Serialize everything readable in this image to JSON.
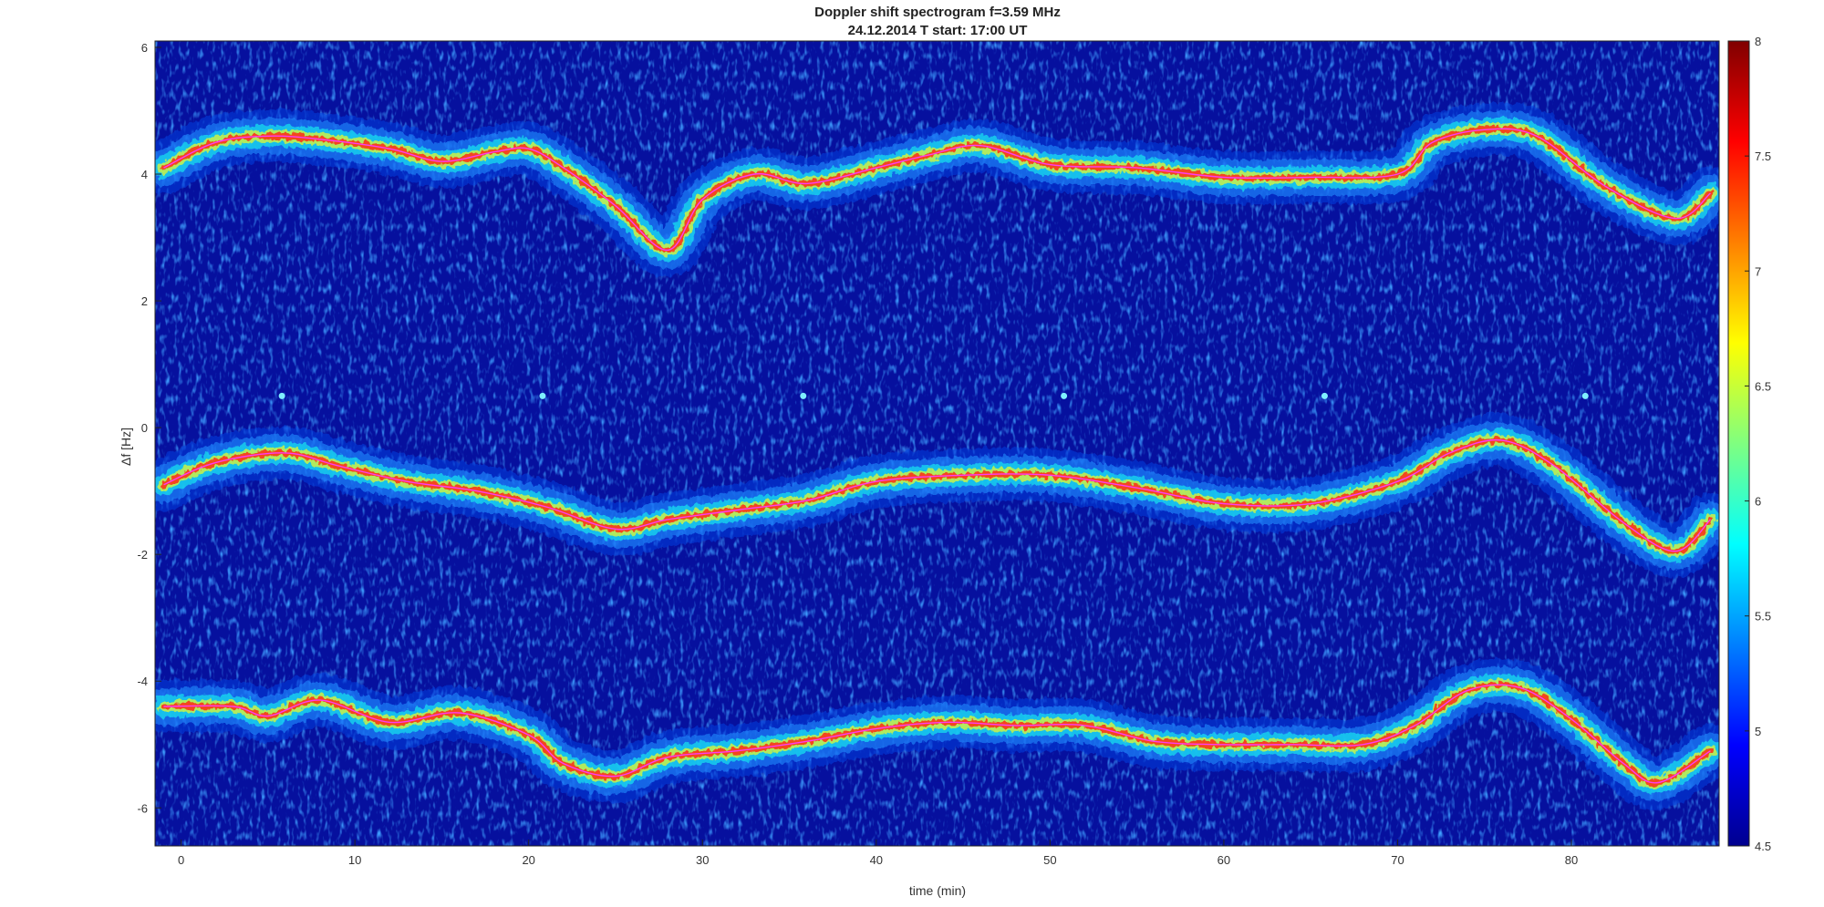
{
  "chart_data": {
    "type": "heatmap",
    "title": "Doppler shift spectrogram f=3.59 MHz",
    "subtitle": "24.12.2014   T start: 17:00 UT",
    "xlabel": "time (min)",
    "ylabel": "Δf [Hz]",
    "xlim": [
      -1.5,
      88.5
    ],
    "ylim": [
      -6.6,
      6.1
    ],
    "x_ticks": [
      0,
      10,
      20,
      30,
      40,
      50,
      60,
      70,
      80
    ],
    "y_ticks": [
      -6,
      -4,
      -2,
      0,
      2,
      4,
      6
    ],
    "colorbar": {
      "colormap": "jet",
      "range": [
        4.5,
        8
      ],
      "ticks": [
        4.5,
        5,
        5.5,
        6,
        6.5,
        7,
        7.5,
        8
      ]
    },
    "grid": false,
    "series": [
      {
        "x": [
          -1,
          2,
          5,
          8,
          12,
          15,
          18,
          20,
          22,
          25,
          28,
          30,
          33,
          36,
          40,
          43,
          46,
          50,
          55,
          60,
          65,
          70,
          72,
          75,
          78,
          82,
          86,
          88
        ],
        "y": [
          4.1,
          4.5,
          4.6,
          4.55,
          4.4,
          4.2,
          4.35,
          4.4,
          4.1,
          3.5,
          2.8,
          3.6,
          4.0,
          3.85,
          4.1,
          4.3,
          4.45,
          4.15,
          4.1,
          3.95,
          3.95,
          4.0,
          4.5,
          4.7,
          4.6,
          3.8,
          3.3,
          3.7
        ]
      },
      {
        "x": [
          -1,
          2,
          6,
          9,
          13,
          17,
          21,
          25,
          28,
          32,
          36,
          40,
          45,
          50,
          55,
          60,
          65,
          70,
          73,
          76,
          79,
          83,
          86,
          88
        ],
        "y": [
          -0.9,
          -0.55,
          -0.4,
          -0.6,
          -0.85,
          -1.0,
          -1.25,
          -1.6,
          -1.45,
          -1.3,
          -1.15,
          -0.85,
          -0.75,
          -0.75,
          -0.95,
          -1.2,
          -1.2,
          -0.85,
          -0.4,
          -0.2,
          -0.6,
          -1.5,
          -1.95,
          -1.45
        ]
      },
      {
        "x": [
          -1,
          3,
          5,
          8,
          12,
          16,
          20,
          22,
          25,
          28,
          32,
          36,
          40,
          44,
          48,
          52,
          56,
          60,
          64,
          68,
          71,
          74,
          77,
          80,
          83,
          85,
          88
        ],
        "y": [
          -4.4,
          -4.4,
          -4.55,
          -4.3,
          -4.65,
          -4.5,
          -4.85,
          -5.3,
          -5.5,
          -5.2,
          -5.1,
          -4.95,
          -4.75,
          -4.65,
          -4.7,
          -4.7,
          -4.95,
          -5.0,
          -5.0,
          -5.0,
          -4.7,
          -4.15,
          -4.1,
          -4.6,
          -5.3,
          -5.6,
          -5.1
        ]
      }
    ],
    "noise_spots": [
      {
        "x": 5.8,
        "y": 0.5
      },
      {
        "x": 20.8,
        "y": 0.5
      },
      {
        "x": 35.8,
        "y": 0.5
      },
      {
        "x": 50.8,
        "y": 0.5
      },
      {
        "x": 65.8,
        "y": 0.5
      },
      {
        "x": 80.8,
        "y": 0.5
      }
    ]
  }
}
